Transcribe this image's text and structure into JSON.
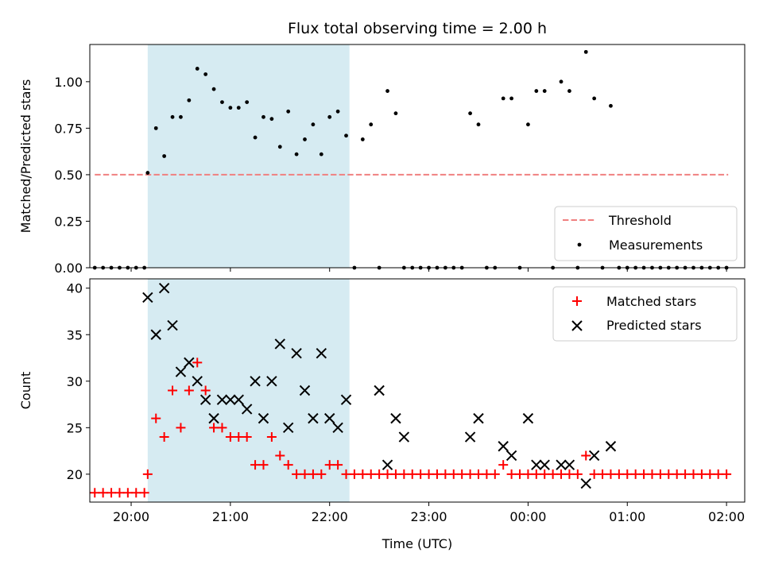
{
  "title": "Flux total observing time = 2.00 h",
  "chart_data": [
    {
      "type": "scatter",
      "ylabel": "Matched/Predicted stars",
      "xlim": [
        "19:35",
        "02:11"
      ],
      "ylim": [
        0,
        1.2
      ],
      "y_ticks": [
        "0.00",
        "0.25",
        "0.50",
        "0.75",
        "1.00"
      ],
      "highlight_span": [
        "20:10",
        "22:12"
      ],
      "threshold": {
        "name": "Threshold",
        "value": 0.5,
        "x_range": [
          "19:38",
          "02:01"
        ],
        "color": "#f08080"
      },
      "legend_position": "lower right",
      "series": [
        {
          "name": "Measurements",
          "color": "#000000",
          "points": [
            [
              "19:38",
              0
            ],
            [
              "19:43",
              0
            ],
            [
              "19:48",
              0
            ],
            [
              "19:53",
              0
            ],
            [
              "19:58",
              0
            ],
            [
              "20:03",
              0
            ],
            [
              "20:08",
              0
            ],
            [
              "20:10",
              0.51
            ],
            [
              "20:15",
              0.75
            ],
            [
              "20:20",
              0.6
            ],
            [
              "20:25",
              0.81
            ],
            [
              "20:30",
              0.81
            ],
            [
              "20:35",
              0.9
            ],
            [
              "20:40",
              1.07
            ],
            [
              "20:45",
              1.04
            ],
            [
              "20:50",
              0.96
            ],
            [
              "20:55",
              0.89
            ],
            [
              "21:00",
              0.86
            ],
            [
              "21:05",
              0.86
            ],
            [
              "21:10",
              0.89
            ],
            [
              "21:15",
              0.7
            ],
            [
              "21:20",
              0.81
            ],
            [
              "21:25",
              0.8
            ],
            [
              "21:30",
              0.65
            ],
            [
              "21:35",
              0.84
            ],
            [
              "21:40",
              0.61
            ],
            [
              "21:45",
              0.69
            ],
            [
              "21:50",
              0.77
            ],
            [
              "21:55",
              0.61
            ],
            [
              "22:00",
              0.81
            ],
            [
              "22:05",
              0.84
            ],
            [
              "22:10",
              0.71
            ],
            [
              "22:15",
              0
            ],
            [
              "22:20",
              0.69
            ],
            [
              "22:25",
              0.77
            ],
            [
              "22:30",
              0
            ],
            [
              "22:35",
              0.95
            ],
            [
              "22:40",
              0.83
            ],
            [
              "22:45",
              0
            ],
            [
              "22:50",
              0
            ],
            [
              "22:55",
              0
            ],
            [
              "23:00",
              0
            ],
            [
              "23:05",
              0
            ],
            [
              "23:10",
              0
            ],
            [
              "23:15",
              0
            ],
            [
              "23:20",
              0
            ],
            [
              "23:25",
              0.83
            ],
            [
              "23:30",
              0.77
            ],
            [
              "23:35",
              0
            ],
            [
              "23:40",
              0
            ],
            [
              "23:45",
              0.91
            ],
            [
              "23:50",
              0.91
            ],
            [
              "23:55",
              0
            ],
            [
              "00:00",
              0.77
            ],
            [
              "00:05",
              0.95
            ],
            [
              "00:10",
              0.95
            ],
            [
              "00:15",
              0
            ],
            [
              "00:20",
              1.0
            ],
            [
              "00:25",
              0.95
            ],
            [
              "00:30",
              0
            ],
            [
              "00:35",
              1.16
            ],
            [
              "00:40",
              0.91
            ],
            [
              "00:45",
              0
            ],
            [
              "00:50",
              0.87
            ],
            [
              "00:55",
              0
            ],
            [
              "01:00",
              0
            ],
            [
              "01:05",
              0
            ],
            [
              "01:10",
              0
            ],
            [
              "01:15",
              0
            ],
            [
              "01:20",
              0
            ],
            [
              "01:25",
              0
            ],
            [
              "01:30",
              0
            ],
            [
              "01:35",
              0
            ],
            [
              "01:40",
              0
            ],
            [
              "01:45",
              0
            ],
            [
              "01:50",
              0
            ],
            [
              "01:55",
              0
            ],
            [
              "02:00",
              0
            ]
          ]
        }
      ]
    },
    {
      "type": "scatter",
      "xlabel": "Time (UTC)",
      "ylabel": "Count",
      "xlim": [
        "19:35",
        "02:11"
      ],
      "ylim": [
        17,
        41
      ],
      "y_ticks": [
        "20",
        "25",
        "30",
        "35",
        "40"
      ],
      "x_ticks": [
        "20:00",
        "21:00",
        "22:00",
        "23:00",
        "00:00",
        "01:00",
        "02:00"
      ],
      "highlight_span": [
        "20:10",
        "22:12"
      ],
      "legend_position": "upper right",
      "series": [
        {
          "name": "Matched stars",
          "marker": "plus",
          "color": "#ff0000",
          "points": [
            [
              "19:38",
              18
            ],
            [
              "19:43",
              18
            ],
            [
              "19:48",
              18
            ],
            [
              "19:53",
              18
            ],
            [
              "19:58",
              18
            ],
            [
              "20:03",
              18
            ],
            [
              "20:08",
              18
            ],
            [
              "20:10",
              20
            ],
            [
              "20:15",
              26
            ],
            [
              "20:20",
              24
            ],
            [
              "20:25",
              29
            ],
            [
              "20:30",
              25
            ],
            [
              "20:35",
              29
            ],
            [
              "20:40",
              32
            ],
            [
              "20:45",
              29
            ],
            [
              "20:50",
              25
            ],
            [
              "20:55",
              25
            ],
            [
              "21:00",
              24
            ],
            [
              "21:05",
              24
            ],
            [
              "21:10",
              24
            ],
            [
              "21:15",
              21
            ],
            [
              "21:20",
              21
            ],
            [
              "21:25",
              24
            ],
            [
              "21:30",
              22
            ],
            [
              "21:35",
              21
            ],
            [
              "21:40",
              20
            ],
            [
              "21:45",
              20
            ],
            [
              "21:50",
              20
            ],
            [
              "21:55",
              20
            ],
            [
              "22:00",
              21
            ],
            [
              "22:05",
              21
            ],
            [
              "22:10",
              20
            ],
            [
              "22:15",
              20
            ],
            [
              "22:20",
              20
            ],
            [
              "22:25",
              20
            ],
            [
              "22:30",
              20
            ],
            [
              "22:35",
              20
            ],
            [
              "22:40",
              20
            ],
            [
              "22:45",
              20
            ],
            [
              "22:50",
              20
            ],
            [
              "22:55",
              20
            ],
            [
              "23:00",
              20
            ],
            [
              "23:05",
              20
            ],
            [
              "23:10",
              20
            ],
            [
              "23:15",
              20
            ],
            [
              "23:20",
              20
            ],
            [
              "23:25",
              20
            ],
            [
              "23:30",
              20
            ],
            [
              "23:35",
              20
            ],
            [
              "23:40",
              20
            ],
            [
              "23:45",
              21
            ],
            [
              "23:50",
              20
            ],
            [
              "23:55",
              20
            ],
            [
              "00:00",
              20
            ],
            [
              "00:05",
              20
            ],
            [
              "00:10",
              20
            ],
            [
              "00:15",
              20
            ],
            [
              "00:20",
              20
            ],
            [
              "00:25",
              20
            ],
            [
              "00:30",
              20
            ],
            [
              "00:35",
              22
            ],
            [
              "00:40",
              20
            ],
            [
              "00:45",
              20
            ],
            [
              "00:50",
              20
            ],
            [
              "00:55",
              20
            ],
            [
              "01:00",
              20
            ],
            [
              "01:05",
              20
            ],
            [
              "01:10",
              20
            ],
            [
              "01:15",
              20
            ],
            [
              "01:20",
              20
            ],
            [
              "01:25",
              20
            ],
            [
              "01:30",
              20
            ],
            [
              "01:35",
              20
            ],
            [
              "01:40",
              20
            ],
            [
              "01:45",
              20
            ],
            [
              "01:50",
              20
            ],
            [
              "01:55",
              20
            ],
            [
              "02:00",
              20
            ]
          ]
        },
        {
          "name": "Predicted stars",
          "marker": "x",
          "color": "#000000",
          "points": [
            [
              "20:10",
              39
            ],
            [
              "20:15",
              35
            ],
            [
              "20:20",
              40
            ],
            [
              "20:25",
              36
            ],
            [
              "20:30",
              31
            ],
            [
              "20:35",
              32
            ],
            [
              "20:40",
              30
            ],
            [
              "20:45",
              28
            ],
            [
              "20:50",
              26
            ],
            [
              "20:55",
              28
            ],
            [
              "21:00",
              28
            ],
            [
              "21:05",
              28
            ],
            [
              "21:10",
              27
            ],
            [
              "21:15",
              30
            ],
            [
              "21:20",
              26
            ],
            [
              "21:25",
              30
            ],
            [
              "21:30",
              34
            ],
            [
              "21:35",
              25
            ],
            [
              "21:40",
              33
            ],
            [
              "21:45",
              29
            ],
            [
              "21:50",
              26
            ],
            [
              "21:55",
              33
            ],
            [
              "22:00",
              26
            ],
            [
              "22:05",
              25
            ],
            [
              "22:10",
              28
            ],
            [
              "22:30",
              29
            ],
            [
              "22:35",
              21
            ],
            [
              "22:40",
              26
            ],
            [
              "22:45",
              24
            ],
            [
              "23:25",
              24
            ],
            [
              "23:30",
              26
            ],
            [
              "23:45",
              23
            ],
            [
              "23:50",
              22
            ],
            [
              "00:00",
              26
            ],
            [
              "00:05",
              21
            ],
            [
              "00:10",
              21
            ],
            [
              "00:20",
              21
            ],
            [
              "00:25",
              21
            ],
            [
              "00:35",
              19
            ],
            [
              "00:40",
              22
            ],
            [
              "00:50",
              23
            ]
          ]
        }
      ]
    }
  ]
}
